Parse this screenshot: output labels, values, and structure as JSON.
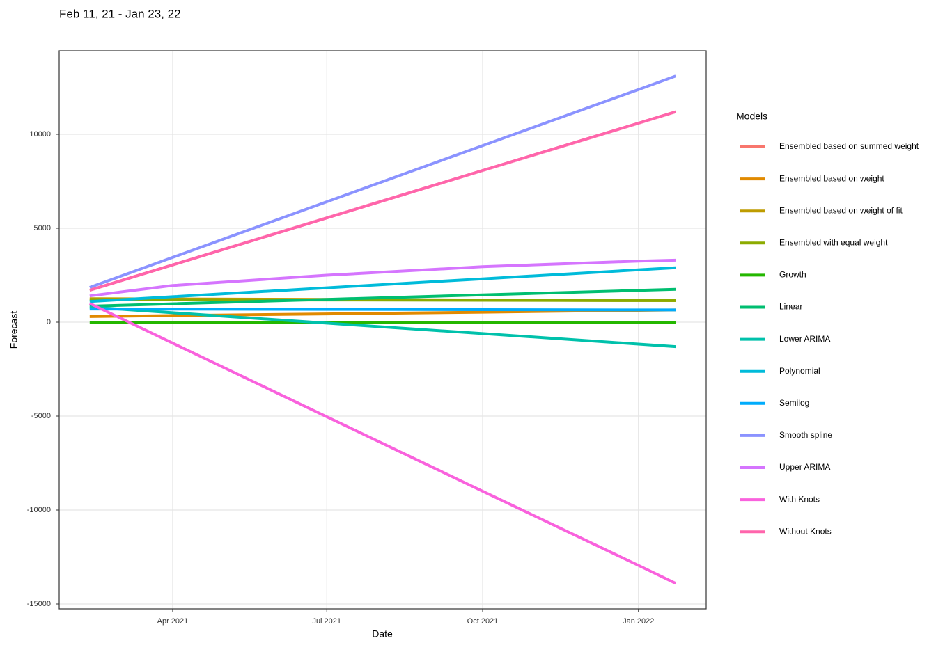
{
  "chart_data": {
    "type": "line",
    "title": "Feb 11, 21 - Jan 23, 22",
    "x_label": "Date",
    "y_label": "Forecast",
    "legend_title": "Models",
    "legend": "right",
    "grid": true,
    "x": [
      "2021-02-11",
      "2021-04-01",
      "2021-07-01",
      "2021-10-01",
      "2022-01-01",
      "2022-01-23"
    ],
    "xlim": [
      "2021-01-24",
      "2022-02-10"
    ],
    "xticks": [
      {
        "value": "2021-04-01",
        "label": "Apr 2021"
      },
      {
        "value": "2021-07-01",
        "label": "Jul 2021"
      },
      {
        "value": "2021-10-01",
        "label": "Oct 2021"
      },
      {
        "value": "2022-01-01",
        "label": "Jan 2022"
      }
    ],
    "ylim": [
      -15259,
      14444
    ],
    "yticks": [
      -15000,
      -10000,
      -5000,
      0,
      5000,
      10000
    ],
    "series": [
      {
        "name": "Ensembled based on summed weight",
        "color": "#F8766D",
        "values": [
          1700,
          3049,
          5548,
          8075,
          10592,
          11200
        ]
      },
      {
        "name": "Ensembled based on weight",
        "color": "#E18A00",
        "values": [
          300,
          350,
          442,
          535,
          628,
          650
        ]
      },
      {
        "name": "Ensembled based on weight of fit",
        "color": "#BE9C00",
        "values": [
          1250,
          1236,
          1210,
          1183,
          1156,
          1150
        ]
      },
      {
        "name": "Ensembled with equal weight",
        "color": "#8CAB00",
        "values": [
          1200,
          1193,
          1180,
          1166,
          1153,
          1150
        ]
      },
      {
        "name": "Growth",
        "color": "#24B700",
        "values": [
          0,
          0,
          0,
          0,
          0,
          0
        ]
      },
      {
        "name": "Linear",
        "color": "#00BE70",
        "values": [
          850,
          978,
          1215,
          1454,
          1692,
          1750
        ]
      },
      {
        "name": "Lower ARIMA",
        "color": "#00C1AB",
        "values": [
          800,
          502,
          -51,
          -609,
          -1166,
          -1300
        ]
      },
      {
        "name": "Polynomial",
        "color": "#00BBDA",
        "values": [
          1100,
          1356,
          1829,
          2308,
          2785,
          2900
        ]
      },
      {
        "name": "Semilog",
        "color": "#00ACFC",
        "values": [
          700,
          693,
          680,
          666,
          653,
          650
        ]
      },
      {
        "name": "Smooth spline",
        "color": "#8B93FF",
        "values": [
          1850,
          3448,
          6406,
          9399,
          12380,
          13100
        ]
      },
      {
        "name": "Upper ARIMA",
        "color": "#D575FE",
        "values": [
          1400,
          1950,
          2500,
          2950,
          3250,
          3300
        ]
      },
      {
        "name": "With Knots",
        "color": "#F962DD",
        "values": [
          1000,
          -1116,
          -5035,
          -8998,
          -12946,
          -13900
        ]
      },
      {
        "name": "Without Knots",
        "color": "#FF65AC",
        "values": [
          1700,
          3049,
          5548,
          8075,
          10592,
          11200
        ]
      }
    ]
  }
}
